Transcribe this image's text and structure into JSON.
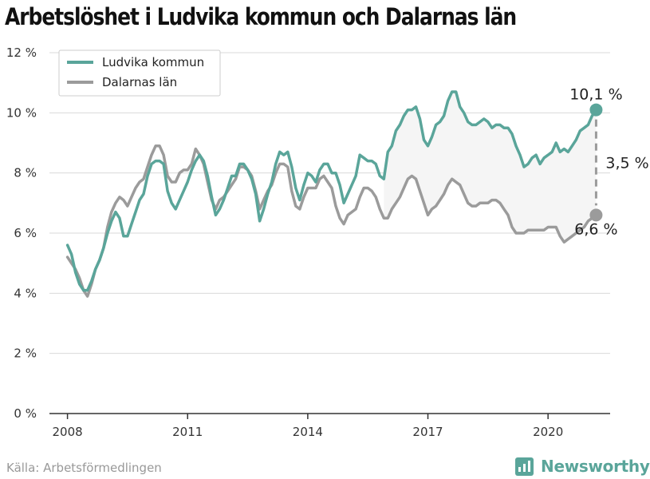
{
  "chart_data": {
    "type": "line",
    "title": "Arbetslöshet i Ludvika kommun och Dalarnas län",
    "xlabel": "",
    "ylabel": "",
    "x_ticks": [
      "2008",
      "2011",
      "2014",
      "2017",
      "2020"
    ],
    "y_ticks": [
      "0 %",
      "2 %",
      "4 %",
      "6 %",
      "8 %",
      "10 %",
      "12 %"
    ],
    "ylim": [
      0,
      12
    ],
    "grid": true,
    "legend_position": "top-left",
    "series": [
      {
        "name": "Ludvika kommun",
        "color": "#5aa59a",
        "points": [
          [
            2008.0,
            5.6
          ],
          [
            2008.1,
            5.3
          ],
          [
            2008.2,
            4.7
          ],
          [
            2008.3,
            4.3
          ],
          [
            2008.4,
            4.1
          ],
          [
            2008.5,
            4.1
          ],
          [
            2008.6,
            4.4
          ],
          [
            2008.7,
            4.8
          ],
          [
            2008.8,
            5.1
          ],
          [
            2008.9,
            5.5
          ],
          [
            2009.0,
            6.0
          ],
          [
            2009.1,
            6.4
          ],
          [
            2009.2,
            6.7
          ],
          [
            2009.3,
            6.5
          ],
          [
            2009.4,
            5.9
          ],
          [
            2009.5,
            5.9
          ],
          [
            2009.6,
            6.3
          ],
          [
            2009.7,
            6.7
          ],
          [
            2009.8,
            7.1
          ],
          [
            2009.9,
            7.3
          ],
          [
            2010.0,
            7.9
          ],
          [
            2010.1,
            8.3
          ],
          [
            2010.2,
            8.4
          ],
          [
            2010.3,
            8.4
          ],
          [
            2010.4,
            8.3
          ],
          [
            2010.5,
            7.4
          ],
          [
            2010.6,
            7.0
          ],
          [
            2010.7,
            6.8
          ],
          [
            2010.8,
            7.1
          ],
          [
            2010.9,
            7.4
          ],
          [
            2011.0,
            7.7
          ],
          [
            2011.1,
            8.1
          ],
          [
            2011.2,
            8.4
          ],
          [
            2011.3,
            8.6
          ],
          [
            2011.4,
            8.4
          ],
          [
            2011.5,
            7.9
          ],
          [
            2011.6,
            7.2
          ],
          [
            2011.7,
            6.6
          ],
          [
            2011.8,
            6.8
          ],
          [
            2011.9,
            7.1
          ],
          [
            2012.0,
            7.5
          ],
          [
            2012.1,
            7.9
          ],
          [
            2012.2,
            7.9
          ],
          [
            2012.3,
            8.3
          ],
          [
            2012.4,
            8.3
          ],
          [
            2012.5,
            8.1
          ],
          [
            2012.6,
            7.8
          ],
          [
            2012.7,
            7.3
          ],
          [
            2012.8,
            6.4
          ],
          [
            2012.9,
            6.8
          ],
          [
            2013.0,
            7.3
          ],
          [
            2013.1,
            7.7
          ],
          [
            2013.2,
            8.3
          ],
          [
            2013.3,
            8.7
          ],
          [
            2013.4,
            8.6
          ],
          [
            2013.5,
            8.7
          ],
          [
            2013.6,
            8.2
          ],
          [
            2013.7,
            7.5
          ],
          [
            2013.8,
            7.1
          ],
          [
            2013.9,
            7.6
          ],
          [
            2014.0,
            8.0
          ],
          [
            2014.1,
            7.9
          ],
          [
            2014.2,
            7.7
          ],
          [
            2014.3,
            8.1
          ],
          [
            2014.4,
            8.3
          ],
          [
            2014.5,
            8.3
          ],
          [
            2014.6,
            8.0
          ],
          [
            2014.7,
            8.0
          ],
          [
            2014.8,
            7.6
          ],
          [
            2014.9,
            7.0
          ],
          [
            2015.0,
            7.3
          ],
          [
            2015.1,
            7.6
          ],
          [
            2015.2,
            7.9
          ],
          [
            2015.3,
            8.6
          ],
          [
            2015.4,
            8.5
          ],
          [
            2015.5,
            8.4
          ],
          [
            2015.6,
            8.4
          ],
          [
            2015.7,
            8.3
          ],
          [
            2015.8,
            7.9
          ],
          [
            2015.9,
            7.8
          ],
          [
            2016.0,
            8.7
          ],
          [
            2016.1,
            8.9
          ],
          [
            2016.2,
            9.4
          ],
          [
            2016.3,
            9.6
          ],
          [
            2016.4,
            9.9
          ],
          [
            2016.5,
            10.1
          ],
          [
            2016.6,
            10.1
          ],
          [
            2016.7,
            10.2
          ],
          [
            2016.8,
            9.8
          ],
          [
            2016.9,
            9.1
          ],
          [
            2017.0,
            8.9
          ],
          [
            2017.1,
            9.2
          ],
          [
            2017.2,
            9.6
          ],
          [
            2017.3,
            9.7
          ],
          [
            2017.4,
            9.9
          ],
          [
            2017.5,
            10.4
          ],
          [
            2017.6,
            10.7
          ],
          [
            2017.7,
            10.7
          ],
          [
            2017.8,
            10.2
          ],
          [
            2017.9,
            10.0
          ],
          [
            2018.0,
            9.7
          ],
          [
            2018.1,
            9.6
          ],
          [
            2018.2,
            9.6
          ],
          [
            2018.3,
            9.7
          ],
          [
            2018.4,
            9.8
          ],
          [
            2018.5,
            9.7
          ],
          [
            2018.6,
            9.5
          ],
          [
            2018.7,
            9.6
          ],
          [
            2018.8,
            9.6
          ],
          [
            2018.9,
            9.5
          ],
          [
            2019.0,
            9.5
          ],
          [
            2019.1,
            9.3
          ],
          [
            2019.2,
            8.9
          ],
          [
            2019.3,
            8.6
          ],
          [
            2019.4,
            8.2
          ],
          [
            2019.5,
            8.3
          ],
          [
            2019.6,
            8.5
          ],
          [
            2019.7,
            8.6
          ],
          [
            2019.8,
            8.3
          ],
          [
            2019.9,
            8.5
          ],
          [
            2020.0,
            8.6
          ],
          [
            2020.1,
            8.7
          ],
          [
            2020.2,
            9.0
          ],
          [
            2020.3,
            8.7
          ],
          [
            2020.4,
            8.8
          ],
          [
            2020.5,
            8.7
          ],
          [
            2020.6,
            8.9
          ],
          [
            2020.7,
            9.1
          ],
          [
            2020.8,
            9.4
          ],
          [
            2020.9,
            9.5
          ],
          [
            2021.0,
            9.6
          ],
          [
            2021.1,
            9.9
          ],
          [
            2021.2,
            10.1
          ]
        ]
      },
      {
        "name": "Dalarnas län",
        "color": "#9b9b9b",
        "points": [
          [
            2008.0,
            5.2
          ],
          [
            2008.1,
            5.0
          ],
          [
            2008.2,
            4.8
          ],
          [
            2008.3,
            4.5
          ],
          [
            2008.4,
            4.1
          ],
          [
            2008.5,
            3.9
          ],
          [
            2008.6,
            4.3
          ],
          [
            2008.7,
            4.8
          ],
          [
            2008.8,
            5.1
          ],
          [
            2008.9,
            5.5
          ],
          [
            2009.0,
            6.2
          ],
          [
            2009.1,
            6.7
          ],
          [
            2009.2,
            7.0
          ],
          [
            2009.3,
            7.2
          ],
          [
            2009.4,
            7.1
          ],
          [
            2009.5,
            6.9
          ],
          [
            2009.6,
            7.2
          ],
          [
            2009.7,
            7.5
          ],
          [
            2009.8,
            7.7
          ],
          [
            2009.9,
            7.8
          ],
          [
            2010.0,
            8.2
          ],
          [
            2010.1,
            8.6
          ],
          [
            2010.2,
            8.9
          ],
          [
            2010.3,
            8.9
          ],
          [
            2010.4,
            8.6
          ],
          [
            2010.5,
            7.9
          ],
          [
            2010.6,
            7.7
          ],
          [
            2010.7,
            7.7
          ],
          [
            2010.8,
            8.0
          ],
          [
            2010.9,
            8.1
          ],
          [
            2011.0,
            8.1
          ],
          [
            2011.1,
            8.3
          ],
          [
            2011.2,
            8.8
          ],
          [
            2011.3,
            8.6
          ],
          [
            2011.4,
            8.3
          ],
          [
            2011.5,
            7.7
          ],
          [
            2011.6,
            7.1
          ],
          [
            2011.7,
            6.8
          ],
          [
            2011.8,
            7.1
          ],
          [
            2011.9,
            7.2
          ],
          [
            2012.0,
            7.4
          ],
          [
            2012.1,
            7.6
          ],
          [
            2012.2,
            7.8
          ],
          [
            2012.3,
            8.2
          ],
          [
            2012.4,
            8.2
          ],
          [
            2012.5,
            8.1
          ],
          [
            2012.6,
            7.9
          ],
          [
            2012.7,
            7.4
          ],
          [
            2012.8,
            6.8
          ],
          [
            2012.9,
            7.1
          ],
          [
            2013.0,
            7.4
          ],
          [
            2013.1,
            7.6
          ],
          [
            2013.2,
            8.0
          ],
          [
            2013.3,
            8.3
          ],
          [
            2013.4,
            8.3
          ],
          [
            2013.5,
            8.2
          ],
          [
            2013.6,
            7.4
          ],
          [
            2013.7,
            6.9
          ],
          [
            2013.8,
            6.8
          ],
          [
            2013.9,
            7.2
          ],
          [
            2014.0,
            7.5
          ],
          [
            2014.1,
            7.5
          ],
          [
            2014.2,
            7.5
          ],
          [
            2014.3,
            7.8
          ],
          [
            2014.4,
            7.9
          ],
          [
            2014.5,
            7.7
          ],
          [
            2014.6,
            7.5
          ],
          [
            2014.7,
            6.9
          ],
          [
            2014.8,
            6.5
          ],
          [
            2014.9,
            6.3
          ],
          [
            2015.0,
            6.6
          ],
          [
            2015.1,
            6.7
          ],
          [
            2015.2,
            6.8
          ],
          [
            2015.3,
            7.2
          ],
          [
            2015.4,
            7.5
          ],
          [
            2015.5,
            7.5
          ],
          [
            2015.6,
            7.4
          ],
          [
            2015.7,
            7.2
          ],
          [
            2015.8,
            6.8
          ],
          [
            2015.9,
            6.5
          ],
          [
            2016.0,
            6.5
          ],
          [
            2016.1,
            6.8
          ],
          [
            2016.2,
            7.0
          ],
          [
            2016.3,
            7.2
          ],
          [
            2016.4,
            7.5
          ],
          [
            2016.5,
            7.8
          ],
          [
            2016.6,
            7.9
          ],
          [
            2016.7,
            7.8
          ],
          [
            2016.8,
            7.4
          ],
          [
            2016.9,
            7.0
          ],
          [
            2017.0,
            6.6
          ],
          [
            2017.1,
            6.8
          ],
          [
            2017.2,
            6.9
          ],
          [
            2017.3,
            7.1
          ],
          [
            2017.4,
            7.3
          ],
          [
            2017.5,
            7.6
          ],
          [
            2017.6,
            7.8
          ],
          [
            2017.7,
            7.7
          ],
          [
            2017.8,
            7.6
          ],
          [
            2017.9,
            7.3
          ],
          [
            2018.0,
            7.0
          ],
          [
            2018.1,
            6.9
          ],
          [
            2018.2,
            6.9
          ],
          [
            2018.3,
            7.0
          ],
          [
            2018.4,
            7.0
          ],
          [
            2018.5,
            7.0
          ],
          [
            2018.6,
            7.1
          ],
          [
            2018.7,
            7.1
          ],
          [
            2018.8,
            7.0
          ],
          [
            2018.9,
            6.8
          ],
          [
            2019.0,
            6.6
          ],
          [
            2019.1,
            6.2
          ],
          [
            2019.2,
            6.0
          ],
          [
            2019.3,
            6.0
          ],
          [
            2019.4,
            6.0
          ],
          [
            2019.5,
            6.1
          ],
          [
            2019.6,
            6.1
          ],
          [
            2019.7,
            6.1
          ],
          [
            2019.8,
            6.1
          ],
          [
            2019.9,
            6.1
          ],
          [
            2020.0,
            6.2
          ],
          [
            2020.1,
            6.2
          ],
          [
            2020.2,
            6.2
          ],
          [
            2020.3,
            5.9
          ],
          [
            2020.4,
            5.7
          ],
          [
            2020.5,
            5.8
          ],
          [
            2020.6,
            5.9
          ],
          [
            2020.7,
            6.0
          ],
          [
            2020.8,
            6.1
          ],
          [
            2020.9,
            6.2
          ],
          [
            2021.0,
            6.4
          ],
          [
            2021.1,
            6.5
          ],
          [
            2021.2,
            6.6
          ]
        ]
      }
    ],
    "shaded_region": {
      "from": 2015.9,
      "to": 2021.2,
      "between_series": true,
      "color": "#f5f5f5"
    },
    "annotations": [
      {
        "series": "Ludvika kommun",
        "label": "10,1 %",
        "x": 2021.2,
        "y": 10.1
      },
      {
        "series": "Dalarnas län",
        "label": "6,6 %",
        "x": 2021.2,
        "y": 6.6
      },
      {
        "label": "3,5 %",
        "type": "difference",
        "x": 2021.2,
        "y_from": 6.6,
        "y_to": 10.1
      }
    ]
  },
  "source": "Källa: Arbetsförmedlingen",
  "brand": {
    "name": "Newsworthy",
    "icon": "bar-chart-icon",
    "color": "#5aa59a"
  }
}
